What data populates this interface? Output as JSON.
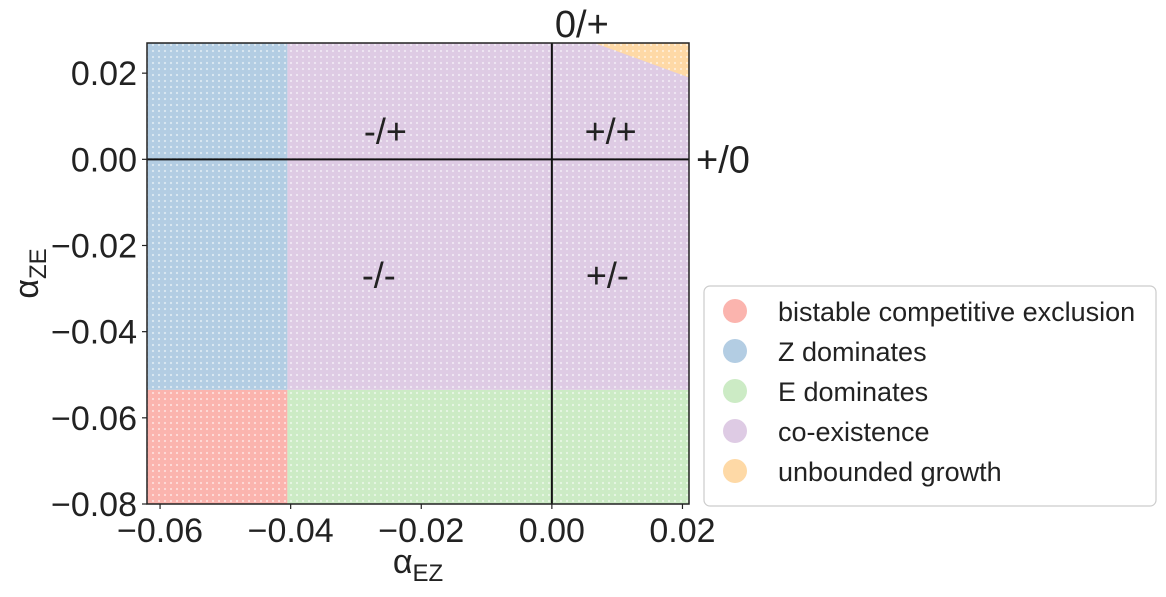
{
  "chart_data": {
    "type": "scatter",
    "title": "",
    "xlabel": {
      "main": "α",
      "sub": "EZ"
    },
    "ylabel": {
      "main": "α",
      "sub": "ZE"
    },
    "xlim": [
      -0.062,
      0.021
    ],
    "ylim": [
      -0.08,
      0.027
    ],
    "x_ticks": [
      -0.06,
      -0.04,
      -0.02,
      0.0,
      0.02
    ],
    "x_tick_labels": [
      "−0.06",
      "−0.04",
      "−0.02",
      "0.00",
      "0.02"
    ],
    "y_ticks": [
      0.02,
      0.0,
      -0.02,
      -0.04,
      -0.06,
      -0.08
    ],
    "y_tick_labels": [
      "0.02",
      "0.00",
      "−0.02",
      "−0.04",
      "−0.06",
      "−0.08"
    ],
    "grid": false,
    "legend_position": "right",
    "reference_lines": {
      "vertical_x": 0.0,
      "horizontal_y": 0.0
    },
    "series": [
      {
        "name": "bistable competitive exclusion",
        "color": "#fbb4ae",
        "region": {
          "x": [
            -0.062,
            -0.0405
          ],
          "y": [
            -0.08,
            -0.0535
          ]
        }
      },
      {
        "name": "Z dominates",
        "color": "#b3cde3",
        "region": {
          "x": [
            -0.062,
            -0.0405
          ],
          "y": [
            -0.0535,
            0.027
          ]
        }
      },
      {
        "name": "E dominates",
        "color": "#ccebc5",
        "region": {
          "x": [
            -0.0405,
            0.021
          ],
          "y": [
            -0.08,
            -0.0535
          ]
        }
      },
      {
        "name": "co-existence",
        "color": "#decbe4",
        "region": {
          "x": [
            -0.0405,
            0.021
          ],
          "y": [
            -0.0535,
            0.027
          ]
        }
      },
      {
        "name": "unbounded growth",
        "color": "#fed9a6",
        "polygon": [
          [
            0.0065,
            0.027
          ],
          [
            0.021,
            0.027
          ],
          [
            0.021,
            0.019
          ]
        ]
      }
    ],
    "annotations": [
      {
        "text": "-/+",
        "x": -0.0255,
        "y": 0.0065
      },
      {
        "text": "+/+",
        "x": 0.009,
        "y": 0.0065
      },
      {
        "text": "-/-",
        "x": -0.0265,
        "y": -0.027
      },
      {
        "text": "+/-",
        "x": 0.0085,
        "y": -0.027
      }
    ],
    "edge_labels": [
      {
        "text": "0/+",
        "anchor": "top-of-vertical-line"
      },
      {
        "text": "+/0",
        "anchor": "right-of-horizontal-line"
      }
    ]
  }
}
